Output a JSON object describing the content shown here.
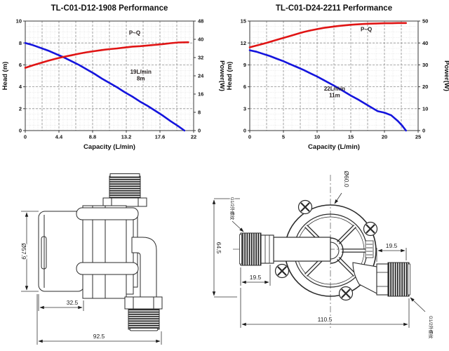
{
  "chart_data": [
    {
      "type": "line",
      "title": "TL-C01-D12-1908 Performance",
      "xlabel": "Capacity (L/min)",
      "ylabel_left": "Head (m)",
      "ylabel_right": "Power(W)",
      "xlim": [
        0,
        22
      ],
      "ylim_left": [
        0,
        10
      ],
      "ylim_right": [
        0,
        48
      ],
      "x_ticks": [
        0,
        4.4,
        8.8,
        13.2,
        17.6,
        22
      ],
      "y_ticks_left": [
        0,
        2,
        4,
        6,
        8,
        10
      ],
      "y_ticks_right": [
        0,
        8,
        16,
        24,
        32,
        40,
        48
      ],
      "grid": {
        "x_major": 2.2,
        "x_minor": 0.55,
        "y_major": 2,
        "y_minor": 0.5
      },
      "series": [
        {
          "name": "head-curve",
          "axis": "left",
          "color": "#1414dd",
          "points": [
            [
              0,
              8.0
            ],
            [
              1,
              7.8
            ],
            [
              2,
              7.55
            ],
            [
              3,
              7.3
            ],
            [
              4,
              7.0
            ],
            [
              5,
              6.7
            ],
            [
              6,
              6.35
            ],
            [
              7,
              6.0
            ],
            [
              8,
              5.6
            ],
            [
              9,
              5.2
            ],
            [
              10,
              4.75
            ],
            [
              11,
              4.35
            ],
            [
              12,
              3.95
            ],
            [
              13,
              3.5
            ],
            [
              14,
              3.1
            ],
            [
              15,
              2.65
            ],
            [
              16,
              2.25
            ],
            [
              17,
              1.8
            ],
            [
              18,
              1.35
            ],
            [
              19,
              0.85
            ],
            [
              20,
              0.4
            ],
            [
              20.8,
              0
            ]
          ]
        },
        {
          "name": "power-curve",
          "axis": "right",
          "color": "#e01414",
          "points": [
            [
              0,
              27.5
            ],
            [
              1,
              28.6
            ],
            [
              2,
              29.6
            ],
            [
              3,
              30.6
            ],
            [
              4,
              31.5
            ],
            [
              5,
              32.3
            ],
            [
              6,
              33.0
            ],
            [
              7,
              33.7
            ],
            [
              8,
              34.3
            ],
            [
              9,
              34.8
            ],
            [
              10,
              35.3
            ],
            [
              11,
              35.7
            ],
            [
              12,
              36.0
            ],
            [
              13,
              36.4
            ],
            [
              14,
              36.8
            ],
            [
              15,
              37.0
            ],
            [
              16,
              37.3
            ],
            [
              17,
              37.6
            ],
            [
              18,
              37.9
            ],
            [
              19,
              38.3
            ],
            [
              20,
              38.6
            ],
            [
              21.3,
              38.7
            ]
          ]
        }
      ],
      "annotations": [
        {
          "text": "P~Q",
          "x": 14.3,
          "y": 8.75
        },
        {
          "text": "19L/min\n8m",
          "x": 15.1,
          "y": 5.2
        }
      ]
    },
    {
      "type": "line",
      "title": "TL-C01-D24-2211 Performance",
      "xlabel": "Capacity (L/min)",
      "ylabel_left": "Head (m)",
      "ylabel_right": "Power(W)",
      "xlim": [
        0,
        25
      ],
      "ylim_left": [
        0,
        15
      ],
      "ylim_right": [
        0,
        50
      ],
      "x_ticks": [
        0,
        5,
        10,
        15,
        20,
        25
      ],
      "y_ticks_left": [
        0,
        3,
        6,
        9,
        12,
        15
      ],
      "y_ticks_right": [
        0,
        10,
        20,
        30,
        40,
        50
      ],
      "grid": {
        "x_major": 2.5,
        "x_minor": 1.25,
        "y_major": 3,
        "y_minor": 0.75
      },
      "series": [
        {
          "name": "head-curve",
          "axis": "left",
          "color": "#1414dd",
          "points": [
            [
              0,
              11.0
            ],
            [
              1,
              10.8
            ],
            [
              2,
              10.5
            ],
            [
              3,
              10.2
            ],
            [
              4,
              9.85
            ],
            [
              5,
              9.5
            ],
            [
              6,
              9.1
            ],
            [
              7,
              8.7
            ],
            [
              8,
              8.3
            ],
            [
              9,
              7.85
            ],
            [
              10,
              7.4
            ],
            [
              11,
              6.9
            ],
            [
              12,
              6.4
            ],
            [
              13,
              5.9
            ],
            [
              14,
              5.35
            ],
            [
              15,
              4.8
            ],
            [
              16,
              4.3
            ],
            [
              17,
              3.75
            ],
            [
              18,
              3.2
            ],
            [
              19,
              2.65
            ],
            [
              20,
              2.45
            ],
            [
              21,
              2.1
            ],
            [
              22,
              1.3
            ],
            [
              22.6,
              0.7
            ],
            [
              23.2,
              0
            ]
          ]
        },
        {
          "name": "power-curve",
          "axis": "right",
          "color": "#e01414",
          "points": [
            [
              0,
              38
            ],
            [
              1,
              38.8
            ],
            [
              2,
              39.6
            ],
            [
              3,
              40.5
            ],
            [
              4,
              41.4
            ],
            [
              5,
              42.3
            ],
            [
              6,
              43.2
            ],
            [
              7,
              44.1
            ],
            [
              8,
              45.0
            ],
            [
              9,
              45.7
            ],
            [
              10,
              46.3
            ],
            [
              11,
              46.9
            ],
            [
              12,
              47.3
            ],
            [
              13,
              47.7
            ],
            [
              14,
              48.0
            ],
            [
              15,
              48.3
            ],
            [
              16,
              48.5
            ],
            [
              17,
              48.7
            ],
            [
              18,
              48.8
            ],
            [
              19,
              48.9
            ],
            [
              20,
              49.0
            ],
            [
              21,
              49.0
            ],
            [
              22,
              49.1
            ],
            [
              23.2,
              49.1
            ]
          ]
        }
      ],
      "annotations": [
        {
          "text": "P~Q",
          "x": 17.3,
          "y": 13.6
        },
        {
          "text": "22L/min\n11m",
          "x": 12.6,
          "y": 5.5
        }
      ]
    }
  ],
  "drawings": {
    "side_view": {
      "dims": {
        "diameter": "Ø57.9",
        "front_section": "32.5",
        "overall_length": "92.5"
      }
    },
    "front_view": {
      "dims": {
        "overall_height": "64.5",
        "volute_diameter": "Ø60.0",
        "inlet_thread_length": "19.5",
        "outlet_thread_length": "19.5",
        "overall_width": "110.5",
        "thread_spec": "G1/2外螺纹"
      }
    }
  }
}
